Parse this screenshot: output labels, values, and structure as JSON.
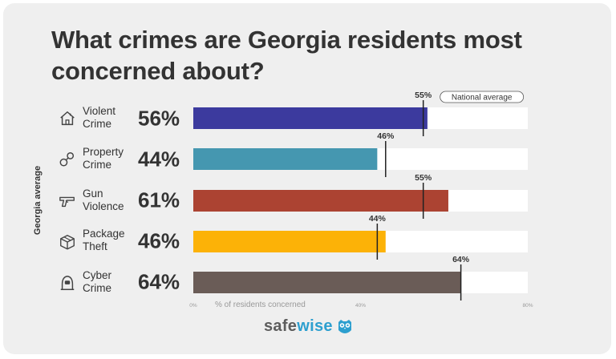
{
  "chart_data": {
    "type": "bar",
    "orientation": "horizontal",
    "title": "What crimes are Georgia residents most concerned about?",
    "ylabel": "Georgia average",
    "xlabel": "% of residents concerned",
    "xlim": [
      0,
      80
    ],
    "x_ticks": [
      "0%",
      "40%",
      "80%"
    ],
    "x_tick_values": [
      0,
      40,
      80
    ],
    "reference_series_name": "National average",
    "categories": [
      {
        "label": "Violent Crime",
        "label_line1": "Violent",
        "label_line2": "Crime",
        "value": 56,
        "value_label": "56%",
        "national": 55,
        "national_label": "55%",
        "color": "#3c3a9e",
        "icon": "house-icon"
      },
      {
        "label": "Property Crime",
        "label_line1": "Property",
        "label_line2": "Crime",
        "value": 44,
        "value_label": "44%",
        "national": 46,
        "national_label": "46%",
        "color": "#4597b0",
        "icon": "handcuffs-icon"
      },
      {
        "label": "Gun Violence",
        "label_line1": "Gun",
        "label_line2": "Violence",
        "value": 61,
        "value_label": "61%",
        "national": 55,
        "national_label": "55%",
        "color": "#ac4332",
        "icon": "gun-icon"
      },
      {
        "label": "Package Theft",
        "label_line1": "Package",
        "label_line2": "Theft",
        "value": 46,
        "value_label": "46%",
        "national": 44,
        "national_label": "44%",
        "color": "#fcb207",
        "icon": "package-icon"
      },
      {
        "label": "Cyber Crime",
        "label_line1": "Cyber",
        "label_line2": "Crime",
        "value": 64,
        "value_label": "64%",
        "national": 64,
        "national_label": "64%",
        "color": "#6a5c57",
        "icon": "hacker-icon"
      }
    ]
  },
  "brand": {
    "logo_text_a": "safe",
    "logo_text_b": "wise",
    "color_a": "#5d5d5d",
    "color_b": "#2d9fcf"
  }
}
